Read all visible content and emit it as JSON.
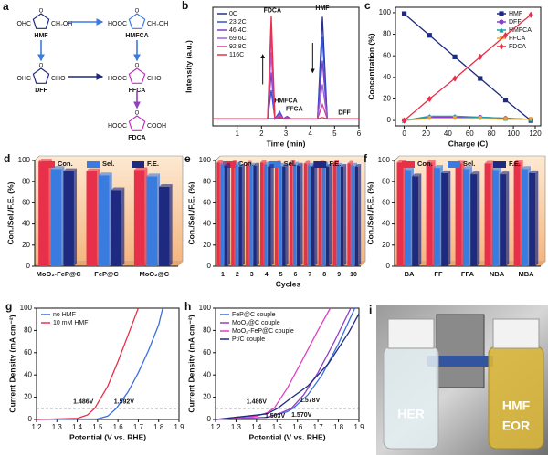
{
  "scheme": {
    "panel": "a",
    "molecules": [
      {
        "name": "HMF",
        "left": "OHC",
        "right": "CH₂OH"
      },
      {
        "name": "HMFCA",
        "left": "HOOC",
        "right": "CH₂OH"
      },
      {
        "name": "DFF",
        "left": "OHC",
        "right": "CHO"
      },
      {
        "name": "FFCA",
        "left": "HOOC",
        "right": "CHO"
      },
      {
        "name": "FDCA",
        "left": "HOOC",
        "right": "COOH"
      }
    ]
  },
  "chart_data": [
    {
      "type": "line",
      "panel": "b",
      "xlabel": "Time (min)",
      "ylabel": "Intensity (a.u.)",
      "x": [
        0,
        1,
        2,
        2.25,
        2.4,
        2.55,
        2.75,
        2.9,
        3.05,
        3.2,
        4.3,
        4.5,
        4.7,
        5,
        6
      ],
      "xlim": [
        0,
        6
      ],
      "xticks": [
        1,
        2,
        3,
        4,
        5,
        6
      ],
      "ylim": [
        0,
        1
      ],
      "legend": "upper left",
      "annotations": [
        "FDCA",
        "HMF",
        "HMFCA",
        "FFCA",
        "DFF"
      ],
      "series": [
        {
          "name": "0C",
          "color": "#2a2f8f",
          "values": [
            0.06,
            0.06,
            0.06,
            0.06,
            0.06,
            0.06,
            0.06,
            0.06,
            0.06,
            0.06,
            0.06,
            0.92,
            0.06,
            0.06,
            0.06
          ]
        },
        {
          "name": "23.2C",
          "color": "#3355d6",
          "values": [
            0.06,
            0.06,
            0.06,
            0.06,
            0.3,
            0.06,
            0.12,
            0.06,
            0.08,
            0.06,
            0.06,
            0.75,
            0.06,
            0.06,
            0.06
          ]
        },
        {
          "name": "46.4C",
          "color": "#7b3fc4",
          "values": [
            0.06,
            0.06,
            0.06,
            0.06,
            0.45,
            0.06,
            0.1,
            0.06,
            0.08,
            0.06,
            0.06,
            0.55,
            0.06,
            0.06,
            0.06
          ]
        },
        {
          "name": "69.6C",
          "color": "#a060d8",
          "values": [
            0.06,
            0.06,
            0.06,
            0.06,
            0.62,
            0.06,
            0.09,
            0.06,
            0.07,
            0.06,
            0.06,
            0.35,
            0.06,
            0.06,
            0.06
          ]
        },
        {
          "name": "92.8C",
          "color": "#d040a0",
          "values": [
            0.06,
            0.06,
            0.06,
            0.06,
            0.78,
            0.06,
            0.08,
            0.06,
            0.07,
            0.06,
            0.06,
            0.18,
            0.06,
            0.06,
            0.06
          ]
        },
        {
          "name": "116C",
          "color": "#e8304a",
          "values": [
            0.06,
            0.06,
            0.06,
            0.06,
            0.93,
            0.06,
            0.07,
            0.06,
            0.06,
            0.06,
            0.06,
            0.07,
            0.06,
            0.06,
            0.06
          ]
        }
      ]
    },
    {
      "type": "line",
      "panel": "c",
      "xlabel": "Charge (C)",
      "ylabel": "Concentration (%)",
      "x": [
        0,
        23.2,
        46.4,
        69.6,
        92.8,
        116
      ],
      "xlim": [
        -8,
        125
      ],
      "xticks": [
        0,
        20,
        40,
        60,
        80,
        100,
        120
      ],
      "ylim": [
        -5,
        105
      ],
      "yticks": [
        0,
        20,
        40,
        60,
        80,
        100
      ],
      "legend": "upper right",
      "series": [
        {
          "name": "HMF",
          "color": "#1d2a80",
          "marker": "square",
          "values": [
            99,
            79,
            59,
            39,
            19,
            0
          ]
        },
        {
          "name": "DFF",
          "color": "#8a3fd0",
          "marker": "circle",
          "values": [
            0,
            3,
            3,
            3,
            2,
            1
          ]
        },
        {
          "name": "HMFCA",
          "color": "#1fa0a0",
          "marker": "triangle",
          "values": [
            0,
            4,
            4,
            3,
            2,
            1
          ]
        },
        {
          "name": "FFCA",
          "color": "#f0a030",
          "marker": "triangle-down",
          "values": [
            0,
            2,
            2,
            2,
            1,
            1
          ]
        },
        {
          "name": "FDCA",
          "color": "#e8304a",
          "marker": "diamond",
          "values": [
            0,
            20,
            39,
            59,
            79,
            98
          ]
        }
      ]
    },
    {
      "type": "bar",
      "panel": "d",
      "ylabel": "Con./Sel./F.E. (%)",
      "categories": [
        "MoO₂-FeP@C",
        "FeP@C",
        "MoO₂@C"
      ],
      "ylim": [
        0,
        100
      ],
      "yticks": [
        0,
        20,
        40,
        60,
        80,
        100
      ],
      "series": [
        {
          "name": "Con.",
          "color": "#e8304a",
          "values": [
            99,
            90,
            91
          ]
        },
        {
          "name": "Sel.",
          "color": "#3a7be0",
          "values": [
            92,
            86,
            85
          ]
        },
        {
          "name": "F.E.",
          "color": "#1d2a80",
          "values": [
            90,
            72,
            75
          ]
        }
      ]
    },
    {
      "type": "bar",
      "panel": "e",
      "ylabel": "Con./Sel./F.E. (%)",
      "xlabel": "Cycles",
      "categories": [
        "1",
        "2",
        "3",
        "4",
        "5",
        "6",
        "7",
        "8",
        "9",
        "10"
      ],
      "ylim": [
        0,
        100
      ],
      "yticks": [
        0,
        20,
        40,
        60,
        80,
        100
      ],
      "series": [
        {
          "name": "Con.",
          "color": "#e8304a",
          "values": [
            98,
            98,
            97,
            98,
            97,
            98,
            97,
            97,
            98,
            97
          ]
        },
        {
          "name": "Sel.",
          "color": "#3a7be0",
          "values": [
            96,
            96,
            95,
            96,
            95,
            96,
            95,
            96,
            95,
            95
          ]
        },
        {
          "name": "F.E.",
          "color": "#1d2a80",
          "values": [
            95,
            94,
            95,
            94,
            94,
            95,
            94,
            94,
            94,
            94
          ]
        }
      ]
    },
    {
      "type": "bar",
      "panel": "f",
      "ylabel": "Con./Sel./F.E. (%)",
      "categories": [
        "BA",
        "FF",
        "FFA",
        "NBA",
        "MBA"
      ],
      "ylim": [
        0,
        100
      ],
      "yticks": [
        0,
        20,
        40,
        60,
        80,
        100
      ],
      "series": [
        {
          "name": "Con.",
          "color": "#e8304a",
          "values": [
            98,
            98,
            97,
            97,
            98
          ]
        },
        {
          "name": "Sel.",
          "color": "#3a7be0",
          "values": [
            91,
            93,
            92,
            91,
            92
          ]
        },
        {
          "name": "F.E.",
          "color": "#1d2a80",
          "values": [
            85,
            88,
            87,
            87,
            88
          ]
        }
      ]
    },
    {
      "type": "line",
      "panel": "g",
      "xlabel": "Potential (V vs. RHE)",
      "ylabel": "Current Density (mA cm⁻²)",
      "xlim": [
        1.2,
        1.9
      ],
      "xticks": [
        1.2,
        1.3,
        1.4,
        1.5,
        1.6,
        1.7,
        1.8,
        1.9
      ],
      "ylim": [
        0,
        100
      ],
      "yticks": [
        0,
        20,
        40,
        60,
        80,
        100
      ],
      "legend": "upper left",
      "hline": 10,
      "annotations": [
        "1.486V",
        "1.592V"
      ],
      "series": [
        {
          "name": "no HMF",
          "color": "#3a6fe0",
          "x": [
            1.2,
            1.5,
            1.55,
            1.592,
            1.65,
            1.7,
            1.75,
            1.8,
            1.82
          ],
          "values": [
            0,
            0.5,
            3,
            10,
            25,
            42,
            62,
            85,
            100
          ]
        },
        {
          "name": "10 mM HMF",
          "color": "#e8304a",
          "x": [
            1.2,
            1.4,
            1.45,
            1.486,
            1.55,
            1.6,
            1.65,
            1.7
          ],
          "values": [
            0,
            1,
            4,
            10,
            30,
            52,
            76,
            100
          ]
        }
      ]
    },
    {
      "type": "line",
      "panel": "h",
      "xlabel": "Potential (V vs. RHE)",
      "ylabel": "Current Density (mA cm⁻²)",
      "xlim": [
        1.2,
        1.9
      ],
      "xticks": [
        1.2,
        1.3,
        1.4,
        1.5,
        1.6,
        1.7,
        1.8,
        1.9
      ],
      "ylim": [
        0,
        100
      ],
      "yticks": [
        0,
        20,
        40,
        60,
        80,
        100
      ],
      "legend": "upper left",
      "hline": 10,
      "annotations": [
        "1.486V",
        "1.578V",
        "1.570V",
        "1.503V"
      ],
      "series": [
        {
          "name": "FeP@C couple",
          "color": "#3a6fe0",
          "x": [
            1.2,
            1.45,
            1.55,
            1.578,
            1.65,
            1.72,
            1.8,
            1.88
          ],
          "values": [
            0,
            2,
            7,
            10,
            22,
            40,
            68,
            100
          ]
        },
        {
          "name": "MoO₂@C couple",
          "color": "#9040c0",
          "x": [
            1.2,
            1.45,
            1.52,
            1.57,
            1.63,
            1.7,
            1.78,
            1.86
          ],
          "values": [
            0,
            2,
            6,
            10,
            22,
            42,
            70,
            100
          ]
        },
        {
          "name": "MoO₂-FeP@C couple",
          "color": "#e040c0",
          "x": [
            1.2,
            1.4,
            1.45,
            1.486,
            1.55,
            1.62,
            1.7,
            1.76
          ],
          "values": [
            0,
            3,
            6,
            10,
            28,
            52,
            80,
            100
          ]
        },
        {
          "name": "Pt/C couple",
          "color": "#1d2a80",
          "x": [
            1.2,
            1.45,
            1.503,
            1.56,
            1.65,
            1.75,
            1.85,
            1.9
          ],
          "values": [
            0,
            5,
            10,
            18,
            30,
            50,
            78,
            95
          ]
        }
      ]
    }
  ],
  "photo": {
    "panel": "i",
    "labels": [
      "HER",
      "HMF",
      "EOR"
    ]
  }
}
